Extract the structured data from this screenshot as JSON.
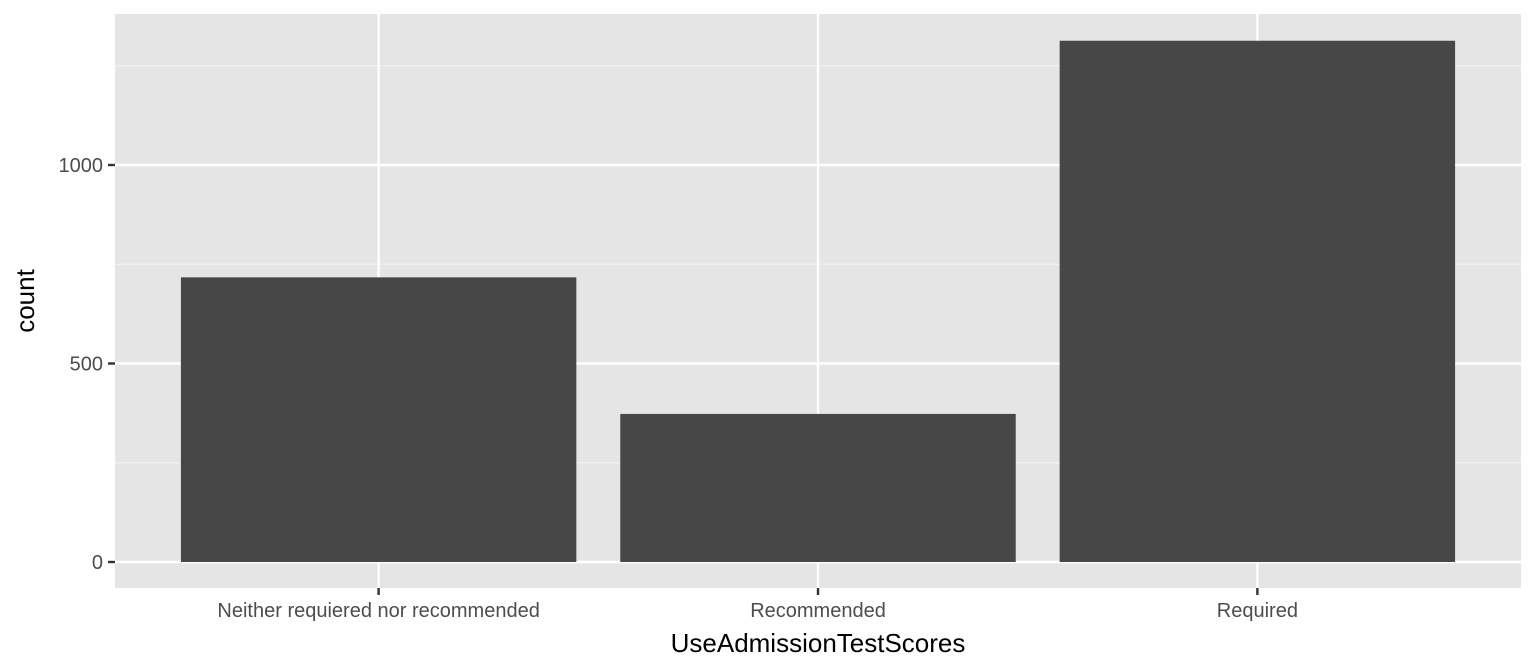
{
  "chart_data": {
    "type": "bar",
    "categories": [
      "Neither requiered nor recommended",
      "Recommended",
      "Required"
    ],
    "values": [
      717,
      373,
      1313
    ],
    "xlabel": "UseAdmissionTestScores",
    "ylabel": "count",
    "ylim": [
      0,
      1380
    ],
    "yticks": [
      0,
      500,
      1000
    ],
    "ytick_labels": [
      "0",
      "500",
      "1000"
    ],
    "grid": true,
    "legend": "none",
    "colors": {
      "panel_bg": "#e5e5e5",
      "grid_major": "#ffffff",
      "grid_minor": "#f2f2f2",
      "bar_fill": "#474747",
      "tick": "#333333"
    }
  }
}
